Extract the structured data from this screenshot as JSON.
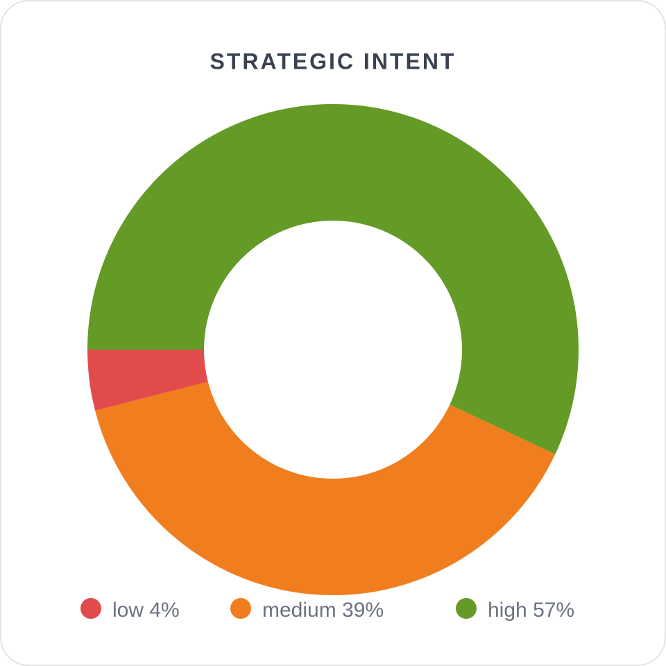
{
  "chart_data": {
    "type": "donut",
    "title": "STRATEGIC INTENT",
    "categories": [
      "low",
      "medium",
      "high"
    ],
    "values": [
      4,
      39,
      57
    ],
    "value_labels": [
      "4%",
      "39%",
      "57%"
    ],
    "colors": [
      "#e24b4b",
      "#f07e1e",
      "#649a26"
    ]
  }
}
